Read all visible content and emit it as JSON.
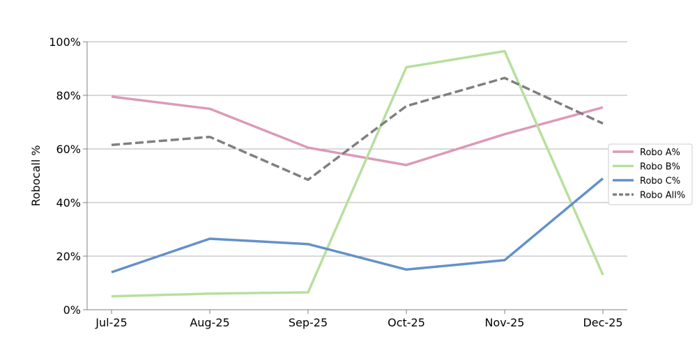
{
  "chart_data": {
    "type": "line",
    "categories": [
      "Jul-25",
      "Aug-25",
      "Sep-25",
      "Oct-25",
      "Nov-25",
      "Dec-25"
    ],
    "series": [
      {
        "name": "Robo A%",
        "values": [
          79.5,
          75.0,
          60.5,
          54.0,
          65.5,
          75.5
        ],
        "color": "#dc9ab8",
        "dashed": false
      },
      {
        "name": "Robo B%",
        "values": [
          5.0,
          6.0,
          6.5,
          90.5,
          96.5,
          13.0
        ],
        "color": "#b7df9e",
        "dashed": false
      },
      {
        "name": "Robo C%",
        "values": [
          14.0,
          26.5,
          24.5,
          15.0,
          18.5,
          49.0
        ],
        "color": "#6491c8",
        "dashed": false
      },
      {
        "name": "Robo All%",
        "values": [
          61.5,
          64.5,
          48.5,
          76.0,
          86.5,
          69.5
        ],
        "color": "#7f7f7f",
        "dashed": true
      }
    ],
    "ylabel": "Robocall %",
    "xlabel": "",
    "title": "",
    "ylim": [
      0,
      100
    ],
    "yticks": [
      "0%",
      "20%",
      "40%",
      "60%",
      "80%",
      "100%"
    ],
    "ytick_values": [
      0,
      20,
      40,
      60,
      80,
      100
    ],
    "grid": "horizontal",
    "legend_position": "right"
  }
}
